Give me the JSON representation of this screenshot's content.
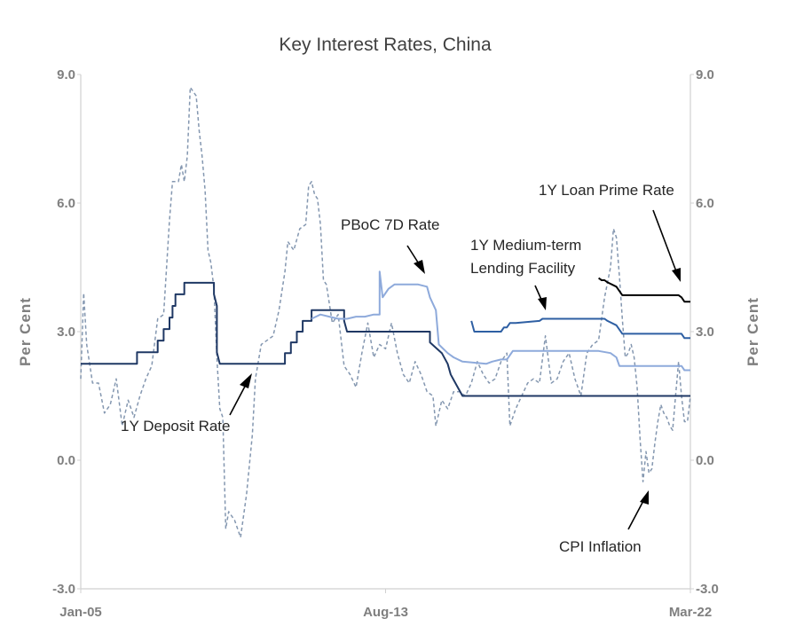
{
  "chart_data": {
    "type": "line",
    "title": "Key Interest Rates, China",
    "ylabel_left": "Per Cent",
    "ylabel_right": "Per Cent",
    "ylim": [
      -3.0,
      9.0
    ],
    "y_ticks": [
      "9.0",
      "6.0",
      "3.0",
      "0.0",
      "-3.0"
    ],
    "y_tick_values": [
      9,
      6,
      3,
      0,
      -3
    ],
    "x_range": [
      "2005-01",
      "2022-03"
    ],
    "x_ticks": [
      {
        "label": "Jan-05",
        "date": "2005-01"
      },
      {
        "label": "Aug-13",
        "date": "2013-08"
      },
      {
        "label": "Mar-22",
        "date": "2022-03"
      }
    ],
    "grid": false,
    "legend": "none",
    "series": [
      {
        "name": "1Y Deposit Rate",
        "color": "#1f3864",
        "style": "solid",
        "points": [
          [
            "2005-01",
            2.25
          ],
          [
            "2006-08",
            2.25
          ],
          [
            "2006-08",
            2.52
          ],
          [
            "2007-03",
            2.52
          ],
          [
            "2007-03",
            2.79
          ],
          [
            "2007-05",
            2.79
          ],
          [
            "2007-05",
            3.06
          ],
          [
            "2007-07",
            3.06
          ],
          [
            "2007-07",
            3.33
          ],
          [
            "2007-08",
            3.33
          ],
          [
            "2007-08",
            3.6
          ],
          [
            "2007-09",
            3.6
          ],
          [
            "2007-09",
            3.87
          ],
          [
            "2007-12",
            3.87
          ],
          [
            "2007-12",
            4.14
          ],
          [
            "2008-10",
            4.14
          ],
          [
            "2008-10",
            3.87
          ],
          [
            "2008-11",
            3.6
          ],
          [
            "2008-11",
            2.52
          ],
          [
            "2008-12",
            2.25
          ],
          [
            "2010-10",
            2.25
          ],
          [
            "2010-10",
            2.5
          ],
          [
            "2010-12",
            2.5
          ],
          [
            "2010-12",
            2.75
          ],
          [
            "2011-02",
            2.75
          ],
          [
            "2011-02",
            3.0
          ],
          [
            "2011-04",
            3.0
          ],
          [
            "2011-04",
            3.25
          ],
          [
            "2011-07",
            3.25
          ],
          [
            "2011-07",
            3.5
          ],
          [
            "2012-06",
            3.5
          ],
          [
            "2012-06",
            3.25
          ],
          [
            "2012-07",
            3.0
          ],
          [
            "2014-11",
            3.0
          ],
          [
            "2014-11",
            2.75
          ],
          [
            "2015-03",
            2.5
          ],
          [
            "2015-05",
            2.25
          ],
          [
            "2015-06",
            2.0
          ],
          [
            "2015-08",
            1.75
          ],
          [
            "2015-10",
            1.5
          ],
          [
            "2022-03",
            1.5
          ]
        ]
      },
      {
        "name": "PBoC 7D Rate",
        "color": "#8eaadb",
        "style": "solid",
        "points": [
          [
            "2011-07",
            3.3
          ],
          [
            "2011-10",
            3.4
          ],
          [
            "2012-01",
            3.35
          ],
          [
            "2012-04",
            3.3
          ],
          [
            "2012-07",
            3.3
          ],
          [
            "2012-10",
            3.35
          ],
          [
            "2013-01",
            3.35
          ],
          [
            "2013-04",
            3.4
          ],
          [
            "2013-06",
            3.4
          ],
          [
            "2013-06",
            4.4
          ],
          [
            "2013-07",
            3.8
          ],
          [
            "2013-08",
            3.9
          ],
          [
            "2013-09",
            4.0
          ],
          [
            "2013-11",
            4.1
          ],
          [
            "2014-01",
            4.1
          ],
          [
            "2014-04",
            4.1
          ],
          [
            "2014-07",
            4.1
          ],
          [
            "2014-10",
            4.05
          ],
          [
            "2014-11",
            3.8
          ],
          [
            "2015-01",
            3.5
          ],
          [
            "2015-02",
            2.7
          ],
          [
            "2015-05",
            2.5
          ],
          [
            "2015-07",
            2.4
          ],
          [
            "2015-10",
            2.3
          ],
          [
            "2016-06",
            2.25
          ],
          [
            "2016-08",
            2.3
          ],
          [
            "2016-11",
            2.35
          ],
          [
            "2017-01",
            2.35
          ],
          [
            "2017-02",
            2.45
          ],
          [
            "2017-03",
            2.55
          ],
          [
            "2018-01",
            2.55
          ],
          [
            "2019-08",
            2.55
          ],
          [
            "2019-12",
            2.5
          ],
          [
            "2020-02",
            2.4
          ],
          [
            "2020-03",
            2.2
          ],
          [
            "2021-12",
            2.2
          ],
          [
            "2022-01",
            2.1
          ],
          [
            "2022-03",
            2.1
          ]
        ]
      },
      {
        "name": "1Y Medium-term Lending Facility",
        "color": "#2e5fa3",
        "style": "solid",
        "points": [
          [
            "2016-01",
            3.25
          ],
          [
            "2016-02",
            3.0
          ],
          [
            "2016-11",
            3.0
          ],
          [
            "2016-12",
            3.1
          ],
          [
            "2017-01",
            3.1
          ],
          [
            "2017-02",
            3.2
          ],
          [
            "2017-03",
            3.2
          ],
          [
            "2017-04",
            3.2
          ],
          [
            "2017-12",
            3.25
          ],
          [
            "2018-01",
            3.3
          ],
          [
            "2019-10",
            3.3
          ],
          [
            "2019-11",
            3.25
          ],
          [
            "2020-02",
            3.15
          ],
          [
            "2020-04",
            2.95
          ],
          [
            "2021-12",
            2.95
          ],
          [
            "2022-01",
            2.85
          ],
          [
            "2022-03",
            2.85
          ]
        ]
      },
      {
        "name": "1Y Loan Prime Rate",
        "color": "#000000",
        "style": "solid",
        "points": [
          [
            "2019-08",
            4.25
          ],
          [
            "2019-09",
            4.2
          ],
          [
            "2019-10",
            4.2
          ],
          [
            "2019-11",
            4.15
          ],
          [
            "2020-02",
            4.05
          ],
          [
            "2020-04",
            3.85
          ],
          [
            "2021-11",
            3.85
          ],
          [
            "2021-12",
            3.8
          ],
          [
            "2022-01",
            3.7
          ],
          [
            "2022-03",
            3.7
          ]
        ]
      },
      {
        "name": "CPI Inflation",
        "color": "#8497b0",
        "style": "dashed",
        "points": [
          [
            "2005-01",
            1.9
          ],
          [
            "2005-02",
            3.9
          ],
          [
            "2005-03",
            2.7
          ],
          [
            "2005-05",
            1.8
          ],
          [
            "2005-07",
            1.8
          ],
          [
            "2005-09",
            1.1
          ],
          [
            "2005-11",
            1.3
          ],
          [
            "2006-01",
            1.9
          ],
          [
            "2006-03",
            0.8
          ],
          [
            "2006-05",
            1.4
          ],
          [
            "2006-07",
            1.0
          ],
          [
            "2006-09",
            1.5
          ],
          [
            "2006-11",
            1.9
          ],
          [
            "2007-01",
            2.2
          ],
          [
            "2007-03",
            3.3
          ],
          [
            "2007-05",
            3.4
          ],
          [
            "2007-07",
            5.6
          ],
          [
            "2007-08",
            6.5
          ],
          [
            "2007-10",
            6.5
          ],
          [
            "2007-11",
            6.9
          ],
          [
            "2007-12",
            6.5
          ],
          [
            "2008-01",
            7.1
          ],
          [
            "2008-02",
            8.7
          ],
          [
            "2008-04",
            8.5
          ],
          [
            "2008-05",
            7.7
          ],
          [
            "2008-06",
            7.1
          ],
          [
            "2008-07",
            6.3
          ],
          [
            "2008-08",
            4.9
          ],
          [
            "2008-09",
            4.6
          ],
          [
            "2008-10",
            4.0
          ],
          [
            "2008-11",
            2.4
          ],
          [
            "2008-12",
            1.2
          ],
          [
            "2009-01",
            1.0
          ],
          [
            "2009-02",
            -1.6
          ],
          [
            "2009-03",
            -1.2
          ],
          [
            "2009-05",
            -1.4
          ],
          [
            "2009-07",
            -1.8
          ],
          [
            "2009-09",
            -0.8
          ],
          [
            "2009-11",
            0.6
          ],
          [
            "2009-12",
            1.9
          ],
          [
            "2010-02",
            2.7
          ],
          [
            "2010-04",
            2.8
          ],
          [
            "2010-06",
            2.9
          ],
          [
            "2010-08",
            3.5
          ],
          [
            "2010-10",
            4.4
          ],
          [
            "2010-11",
            5.1
          ],
          [
            "2011-01",
            4.9
          ],
          [
            "2011-03",
            5.4
          ],
          [
            "2011-05",
            5.5
          ],
          [
            "2011-06",
            6.4
          ],
          [
            "2011-07",
            6.5
          ],
          [
            "2011-08",
            6.2
          ],
          [
            "2011-09",
            6.1
          ],
          [
            "2011-10",
            5.5
          ],
          [
            "2011-11",
            4.2
          ],
          [
            "2011-12",
            4.1
          ],
          [
            "2012-02",
            3.2
          ],
          [
            "2012-04",
            3.4
          ],
          [
            "2012-06",
            2.2
          ],
          [
            "2012-08",
            2.0
          ],
          [
            "2012-10",
            1.7
          ],
          [
            "2012-12",
            2.5
          ],
          [
            "2013-02",
            3.2
          ],
          [
            "2013-04",
            2.4
          ],
          [
            "2013-06",
            2.7
          ],
          [
            "2013-08",
            2.6
          ],
          [
            "2013-10",
            3.2
          ],
          [
            "2013-12",
            2.5
          ],
          [
            "2014-02",
            2.0
          ],
          [
            "2014-04",
            1.8
          ],
          [
            "2014-06",
            2.3
          ],
          [
            "2014-08",
            2.0
          ],
          [
            "2014-10",
            1.6
          ],
          [
            "2014-12",
            1.5
          ],
          [
            "2015-01",
            0.8
          ],
          [
            "2015-03",
            1.4
          ],
          [
            "2015-05",
            1.2
          ],
          [
            "2015-07",
            1.6
          ],
          [
            "2015-09",
            1.6
          ],
          [
            "2015-11",
            1.5
          ],
          [
            "2016-01",
            1.8
          ],
          [
            "2016-03",
            2.3
          ],
          [
            "2016-05",
            2.0
          ],
          [
            "2016-07",
            1.8
          ],
          [
            "2016-09",
            1.9
          ],
          [
            "2016-11",
            2.3
          ],
          [
            "2017-01",
            2.5
          ],
          [
            "2017-02",
            0.8
          ],
          [
            "2017-04",
            1.2
          ],
          [
            "2017-06",
            1.5
          ],
          [
            "2017-08",
            1.8
          ],
          [
            "2017-10",
            1.9
          ],
          [
            "2017-12",
            1.8
          ],
          [
            "2018-02",
            2.9
          ],
          [
            "2018-04",
            1.8
          ],
          [
            "2018-06",
            1.9
          ],
          [
            "2018-08",
            2.3
          ],
          [
            "2018-10",
            2.5
          ],
          [
            "2018-12",
            1.9
          ],
          [
            "2019-02",
            1.5
          ],
          [
            "2019-04",
            2.5
          ],
          [
            "2019-06",
            2.7
          ],
          [
            "2019-08",
            2.8
          ],
          [
            "2019-10",
            3.8
          ],
          [
            "2019-12",
            4.5
          ],
          [
            "2020-01",
            5.4
          ],
          [
            "2020-02",
            5.2
          ],
          [
            "2020-03",
            4.3
          ],
          [
            "2020-04",
            3.3
          ],
          [
            "2020-05",
            2.4
          ],
          [
            "2020-06",
            2.5
          ],
          [
            "2020-07",
            2.7
          ],
          [
            "2020-08",
            2.4
          ],
          [
            "2020-09",
            1.7
          ],
          [
            "2020-10",
            0.5
          ],
          [
            "2020-11",
            -0.5
          ],
          [
            "2020-12",
            0.2
          ],
          [
            "2021-01",
            -0.3
          ],
          [
            "2021-02",
            -0.2
          ],
          [
            "2021-03",
            0.4
          ],
          [
            "2021-04",
            0.9
          ],
          [
            "2021-05",
            1.3
          ],
          [
            "2021-06",
            1.1
          ],
          [
            "2021-07",
            1.0
          ],
          [
            "2021-08",
            0.8
          ],
          [
            "2021-09",
            0.7
          ],
          [
            "2021-10",
            1.5
          ],
          [
            "2021-11",
            2.3
          ],
          [
            "2021-12",
            1.5
          ],
          [
            "2022-01",
            0.9
          ],
          [
            "2022-02",
            0.9
          ],
          [
            "2022-03",
            1.5
          ]
        ]
      }
    ],
    "annotations": [
      {
        "text": "1Y Deposit Rate",
        "series": "1Y Deposit Rate"
      },
      {
        "text": "PBoC 7D Rate",
        "series": "PBoC 7D Rate"
      },
      {
        "text": "1Y Medium-term",
        "series": "1Y Medium-term Lending Facility"
      },
      {
        "text": "Lending Facility",
        "series": "1Y Medium-term Lending Facility"
      },
      {
        "text": "1Y Loan Prime Rate",
        "series": "1Y Loan Prime Rate"
      },
      {
        "text": "CPI  Inflation",
        "series": "CPI Inflation"
      }
    ]
  }
}
